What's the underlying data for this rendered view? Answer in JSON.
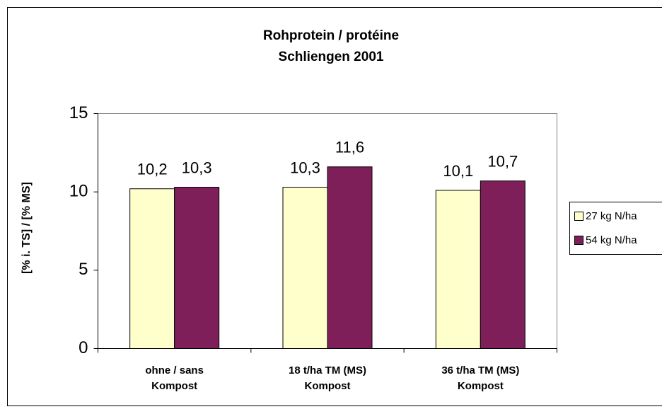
{
  "chart_data": {
    "type": "bar",
    "title": "Rohprotein / protéine\nSchliengen 2001",
    "y_label": "[% i. TS] / [% MS]",
    "categories": [
      "ohne / sans\nKompost",
      "18 t/ha TM (MS)\nKompost",
      "36 t/ha TM (MS)\nKompost"
    ],
    "series": [
      {
        "name": "27 kg N/ha",
        "color": "#ffffcc",
        "values": [
          10.2,
          10.3,
          10.1
        ],
        "value_labels": [
          "10,2",
          "10,3",
          "10,1"
        ]
      },
      {
        "name": "54 kg N/ha",
        "color": "#7f1f5a",
        "values": [
          10.3,
          11.6,
          10.7
        ],
        "value_labels": [
          "10,3",
          "11,6",
          "10,7"
        ]
      }
    ],
    "ylim": [
      0,
      15
    ],
    "yticks": [
      0,
      5,
      10,
      15
    ],
    "legend": "right"
  }
}
